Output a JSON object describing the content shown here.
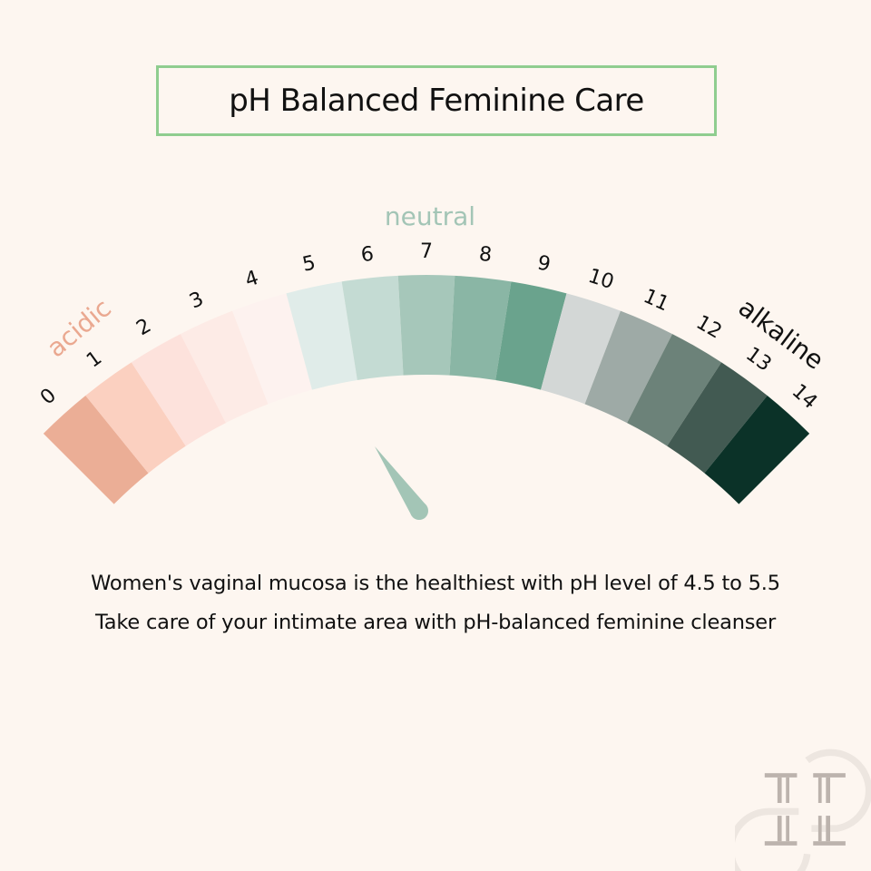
{
  "title": "pH Balanced Feminine Care",
  "scale": {
    "min": 0,
    "max": 14,
    "labels": [
      "0",
      "1",
      "2",
      "3",
      "4",
      "5",
      "6",
      "7",
      "8",
      "9",
      "10",
      "11",
      "12",
      "13",
      "14"
    ],
    "colors": [
      "#ebae96",
      "#fbd0c0",
      "#fde2dc",
      "#fdebe6",
      "#fdf2ef",
      "#e0ece9",
      "#c4dbd3",
      "#a6c7ba",
      "#8ab6a5",
      "#6aa38d",
      "#d3d7d6",
      "#9eaaa6",
      "#6c8279",
      "#425a52",
      "#0b3228"
    ],
    "acidic_label": "acidic",
    "neutral_label": "neutral",
    "alkaline_label": "alkaline",
    "acidic_color": "#eaa890",
    "neutral_color": "#a3c5b6",
    "alkaline_color": "#111111",
    "needle_value": 5,
    "needle_color": "#a3c5b6"
  },
  "captions": [
    "Women's vaginal mucosa is the healthiest with pH level of 4.5 to 5.5",
    "Take care of your intimate area with pH-balanced feminine cleanser"
  ],
  "logo": {
    "icon": "double-h-monogram-logo",
    "color": "#bcb3ad"
  }
}
